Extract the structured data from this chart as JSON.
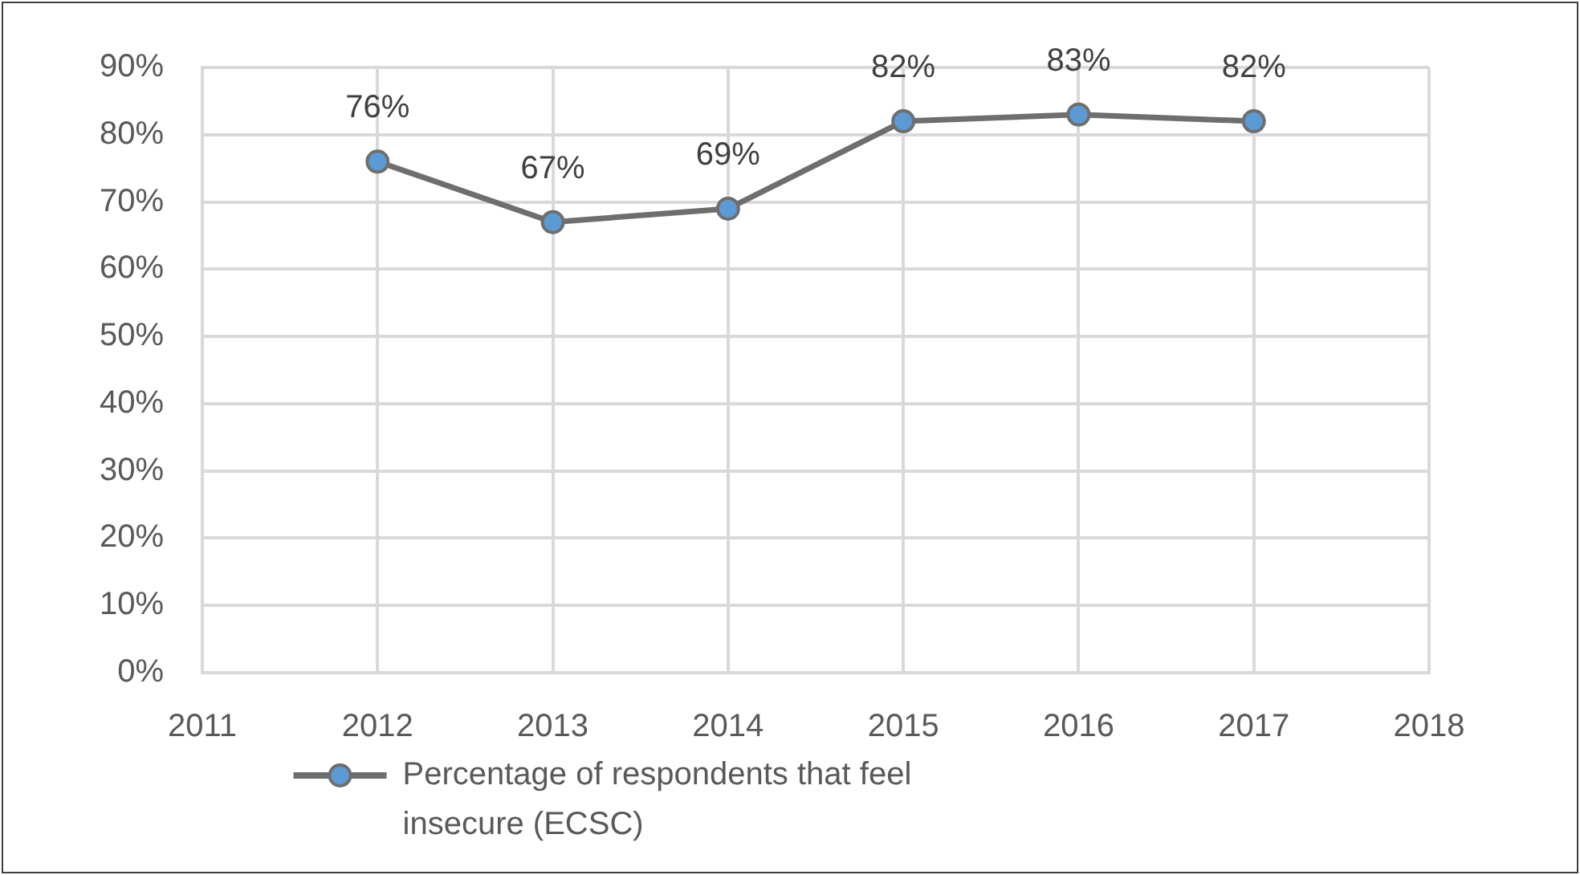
{
  "chart_data": {
    "type": "line",
    "x": [
      2012,
      2013,
      2014,
      2015,
      2016,
      2017
    ],
    "xlim": [
      2011,
      2018
    ],
    "xticks": [
      2011,
      2012,
      2013,
      2014,
      2015,
      2016,
      2017,
      2018
    ],
    "ylim": [
      0,
      90
    ],
    "yticks": [
      {
        "value": 0,
        "label": "0%"
      },
      {
        "value": 10,
        "label": "10%"
      },
      {
        "value": 20,
        "label": "20%"
      },
      {
        "value": 30,
        "label": "30%"
      },
      {
        "value": 40,
        "label": "40%"
      },
      {
        "value": 50,
        "label": "50%"
      },
      {
        "value": 60,
        "label": "60%"
      },
      {
        "value": 70,
        "label": "70%"
      },
      {
        "value": 80,
        "label": "80%"
      },
      {
        "value": 90,
        "label": "90%"
      }
    ],
    "series": [
      {
        "name": "Percentage of respondents that feel insecure (ECSC)",
        "color": "#6e6e6e",
        "colors": [
          "#5b9bd5",
          "#5b9bd5",
          "#5b9bd5",
          "#5b9bd5",
          "#5b9bd5",
          "#5b9bd5"
        ],
        "values": [
          76,
          67,
          69,
          82,
          83,
          82
        ],
        "value_labels": [
          "76%",
          "67%",
          "69%",
          "82%",
          "83%",
          "82%"
        ]
      }
    ],
    "grid": true,
    "legend": "bottom",
    "marker": "circle",
    "line_style": "solid"
  }
}
